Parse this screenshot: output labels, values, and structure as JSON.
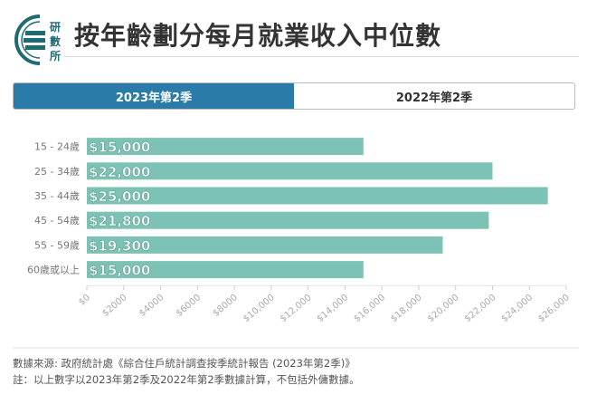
{
  "header": {
    "logo_text": [
      "研",
      "數",
      "所"
    ],
    "title": "按年齡劃分每月就業收入中位數"
  },
  "tabs": [
    {
      "label": "2023年第2季",
      "active": true
    },
    {
      "label": "2022年第2季",
      "active": false
    }
  ],
  "colors": {
    "bar": "#7dc3b5",
    "tab_active": "#2b7ba8",
    "logo": "#1f6b73"
  },
  "chart_data": {
    "type": "bar",
    "orientation": "horizontal",
    "categories": [
      "15 - 24歲",
      "25 - 34歲",
      "35 - 44歲",
      "45 - 54歲",
      "55 - 59歲",
      "60歲或以上"
    ],
    "values": [
      15000,
      22000,
      25000,
      21800,
      19300,
      15000
    ],
    "data_labels": [
      "$15,000",
      "$22,000",
      "$25,000",
      "$21,800",
      "$19,300",
      "$15,000"
    ],
    "xlim": [
      0,
      26000
    ],
    "xticks": [
      "$0",
      "$2000",
      "$4000",
      "$6000",
      "$8000",
      "$10,000",
      "$12,000",
      "$14,000",
      "$16,000",
      "$18,000",
      "$20,000",
      "$22,000",
      "$24,000",
      "$26,000"
    ],
    "title": "",
    "xlabel": "",
    "ylabel": ""
  },
  "footer": {
    "source": "數據來源: 政府統計處《綜合住戶統計調查按季統計報告 (2023年第2季)》",
    "note": "註：以上數字以2023年第2季及2022年第2季數據計算，不包括外傭數據。"
  }
}
